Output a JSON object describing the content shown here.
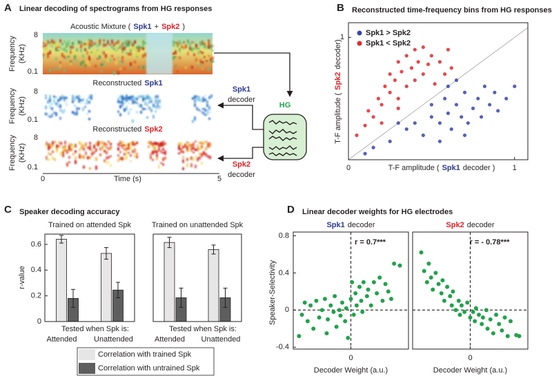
{
  "panel_a": {
    "letter": "A",
    "title": "Linear decoding of spectrograms from HG responses",
    "rows": [
      {
        "title": [
          "Acoustic Mixture (",
          {
            "text": "Spk1",
            "color": "#2b3990"
          },
          "+",
          {
            "text": "Spk2",
            "color": "#e21f26"
          },
          ")"
        ],
        "ylabel": [
          "Frequency",
          "(KHz)"
        ],
        "yticks": [
          "8",
          "0.1"
        ]
      },
      {
        "title": [
          "Reconstructed",
          {
            "text": "Spk1",
            "color": "#2b3990"
          }
        ],
        "ylabel": [
          "Frequency",
          "(KHz)"
        ],
        "yticks": [
          "8",
          "0.1"
        ]
      },
      {
        "title": [
          "Reconstructed",
          {
            "text": "Spk2",
            "color": "#e21f26"
          }
        ],
        "ylabel": [
          "Frequency",
          "(KHz)"
        ],
        "yticks": [
          "8",
          "0.1"
        ]
      }
    ],
    "xticks": [
      "0",
      "5"
    ],
    "xlabel": "Time (s)",
    "hg": "HG",
    "decoders": [
      {
        "name": "Spk1",
        "color": "#2b3990",
        "label": "decoder"
      },
      {
        "name": "Spk2",
        "color": "#e21f26",
        "label": "decoder"
      }
    ]
  },
  "chart_data": [
    {
      "type": "scatter",
      "letter": "B",
      "title": "Reconstructed time-frequency bins from HG responses",
      "xlabel": [
        "T-F amplitude (",
        {
          "text": "Spk1",
          "color": "#2b3990"
        },
        "decoder )"
      ],
      "ylabel": [
        "T-F amplitude (",
        {
          "text": "Spk2",
          "color": "#e21f26"
        },
        "decoder)"
      ],
      "xlim": [
        0,
        1.08
      ],
      "ylim": [
        0,
        1.12
      ],
      "xticks": [
        0,
        1
      ],
      "yticks": [
        1
      ],
      "identity_line": true,
      "legend": "upper left",
      "series": [
        {
          "name": "Spk1 > Spk2",
          "color": "#3844b0",
          "x": [
            0.35,
            0.4,
            0.45,
            0.5,
            0.5,
            0.55,
            0.58,
            0.6,
            0.62,
            0.65,
            0.68,
            0.7,
            0.72,
            0.75,
            0.78,
            0.8,
            0.82,
            0.85,
            0.88,
            0.9,
            0.95,
            1.0,
            0.25,
            0.3,
            0.15,
            0.1,
            0.6,
            0.7,
            0.55,
            0.65
          ],
          "values": [
            0.25,
            0.3,
            0.2,
            0.35,
            0.45,
            0.3,
            0.5,
            0.38,
            0.25,
            0.45,
            0.35,
            0.55,
            0.3,
            0.42,
            0.5,
            0.35,
            0.6,
            0.45,
            0.55,
            0.4,
            0.5,
            0.6,
            0.15,
            0.3,
            0.1,
            0.05,
            0.6,
            0.2,
            0.15,
            0.65
          ]
        },
        {
          "name": "Spk1 < Spk2",
          "color": "#e8262a",
          "x": [
            0.05,
            0.1,
            0.12,
            0.15,
            0.18,
            0.2,
            0.22,
            0.25,
            0.25,
            0.28,
            0.3,
            0.3,
            0.32,
            0.35,
            0.35,
            0.38,
            0.4,
            0.4,
            0.42,
            0.45,
            0.45,
            0.48,
            0.5,
            0.52,
            0.55,
            0.58,
            0.6,
            0.62,
            0.2,
            0.3
          ],
          "values": [
            0.2,
            0.28,
            0.4,
            0.35,
            0.5,
            0.45,
            0.6,
            0.55,
            0.7,
            0.65,
            0.8,
            0.5,
            0.72,
            0.6,
            0.85,
            0.75,
            0.9,
            0.65,
            0.8,
            0.7,
            0.92,
            0.78,
            0.85,
            0.62,
            0.8,
            0.7,
            0.9,
            0.75,
            0.3,
            0.42
          ]
        }
      ]
    },
    {
      "type": "bar",
      "letter": "C",
      "panel_title": "Speaker decoding accuracy",
      "subtitle": "Trained on attended Spk",
      "ylabel": "r-value",
      "xlabel": "Tested when Spk is:",
      "categories": [
        "Attended",
        "Unattended"
      ],
      "ylim": [
        0,
        0.68
      ],
      "yticks": [
        0,
        0.2,
        0.4,
        0.6
      ],
      "series": [
        {
          "name": "Correlation with trained Spk",
          "color": "#e6e6e6",
          "values": [
            0.64,
            0.53
          ],
          "errors": [
            0.03,
            0.045
          ]
        },
        {
          "name": "Correlation with untrained Spk",
          "color": "#5e5e5e",
          "values": [
            0.18,
            0.245
          ],
          "errors": [
            0.07,
            0.06
          ]
        }
      ]
    },
    {
      "type": "bar",
      "subtitle": "Trained on unattended Spk",
      "xlabel": "Tested when Spk is:",
      "categories": [
        "Attended",
        "Unattended"
      ],
      "ylim": [
        0,
        0.68
      ],
      "series": [
        {
          "color": "#e6e6e6",
          "values": [
            0.615,
            0.56
          ],
          "errors": [
            0.04,
            0.035
          ]
        },
        {
          "color": "#5e5e5e",
          "values": [
            0.185,
            0.185
          ],
          "errors": [
            0.075,
            0.075
          ]
        }
      ]
    },
    {
      "type": "scatter",
      "letter": "D",
      "panel_title": "Linear decoder weights for HG electrodes",
      "subtitle": [
        {
          "text": "Spk1",
          "color": "#2b3990"
        },
        "decoder"
      ],
      "annotation": "r = 0.7***",
      "ylabel": "Speaker-Selectivity",
      "xlabel": "Decoder Weight (a.u.)",
      "xlim": [
        -1,
        1
      ],
      "ylim": [
        -0.42,
        0.84
      ],
      "xticks": [
        0
      ],
      "yticks": [
        -0.4,
        0,
        0.4,
        0.8
      ],
      "zero_lines": true,
      "series": [
        {
          "color": "#1fa34a",
          "x": [
            -0.9,
            -0.85,
            -0.8,
            -0.75,
            -0.7,
            -0.65,
            -0.6,
            -0.55,
            -0.5,
            -0.45,
            -0.42,
            -0.4,
            -0.35,
            -0.3,
            -0.28,
            -0.25,
            -0.2,
            -0.18,
            -0.15,
            -0.1,
            -0.08,
            -0.05,
            0.0,
            0.02,
            0.05,
            0.08,
            0.1,
            0.15,
            0.18,
            0.2,
            0.22,
            0.28,
            0.3,
            0.35,
            0.4,
            0.45,
            0.5,
            0.55,
            0.6,
            0.65,
            0.7,
            0.75,
            0.85
          ],
          "values": [
            -0.28,
            -0.05,
            0.08,
            -0.12,
            0.05,
            -0.2,
            0.1,
            -0.08,
            0.0,
            0.12,
            -0.25,
            -0.1,
            0.05,
            -0.02,
            0.15,
            -0.18,
            0.0,
            -0.06,
            0.08,
            -0.12,
            0.02,
            -0.3,
            0.12,
            0.3,
            -0.05,
            0.18,
            0.05,
            0.25,
            0.1,
            -0.02,
            0.3,
            0.15,
            0.22,
            0.05,
            0.3,
            0.18,
            0.35,
            0.1,
            0.28,
            0.2,
            0.12,
            0.5,
            0.48
          ]
        }
      ]
    },
    {
      "type": "scatter",
      "subtitle": [
        {
          "text": "Spk2",
          "color": "#e21f26"
        },
        "decoder"
      ],
      "annotation": "r = - 0.78***",
      "xlabel": "Decoder Weight (a.u.)",
      "xlim": [
        -1,
        1
      ],
      "ylim": [
        -0.42,
        0.84
      ],
      "xticks": [
        0
      ],
      "zero_lines": true,
      "series": [
        {
          "color": "#1fa34a",
          "x": [
            -0.85,
            -0.8,
            -0.75,
            -0.72,
            -0.68,
            -0.65,
            -0.6,
            -0.55,
            -0.5,
            -0.48,
            -0.45,
            -0.4,
            -0.35,
            -0.32,
            -0.3,
            -0.25,
            -0.2,
            -0.18,
            -0.15,
            -0.1,
            -0.05,
            0.0,
            0.05,
            0.08,
            0.1,
            0.15,
            0.2,
            0.22,
            0.28,
            0.3,
            0.35,
            0.4,
            0.45,
            0.5,
            0.55,
            0.6,
            0.65,
            0.7,
            0.8,
            0.85
          ],
          "values": [
            0.62,
            0.42,
            0.3,
            0.5,
            0.35,
            0.22,
            0.4,
            0.28,
            0.18,
            0.32,
            0.1,
            0.25,
            0.15,
            0.05,
            0.2,
            0.0,
            0.1,
            -0.05,
            0.05,
            -0.02,
            0.08,
            -0.08,
            -0.02,
            -0.12,
            0.02,
            -0.05,
            -0.15,
            -0.08,
            0.0,
            -0.2,
            -0.1,
            -0.25,
            -0.05,
            -0.15,
            -0.22,
            -0.08,
            -0.28,
            -0.12,
            -0.27,
            -0.28
          ]
        }
      ]
    }
  ]
}
